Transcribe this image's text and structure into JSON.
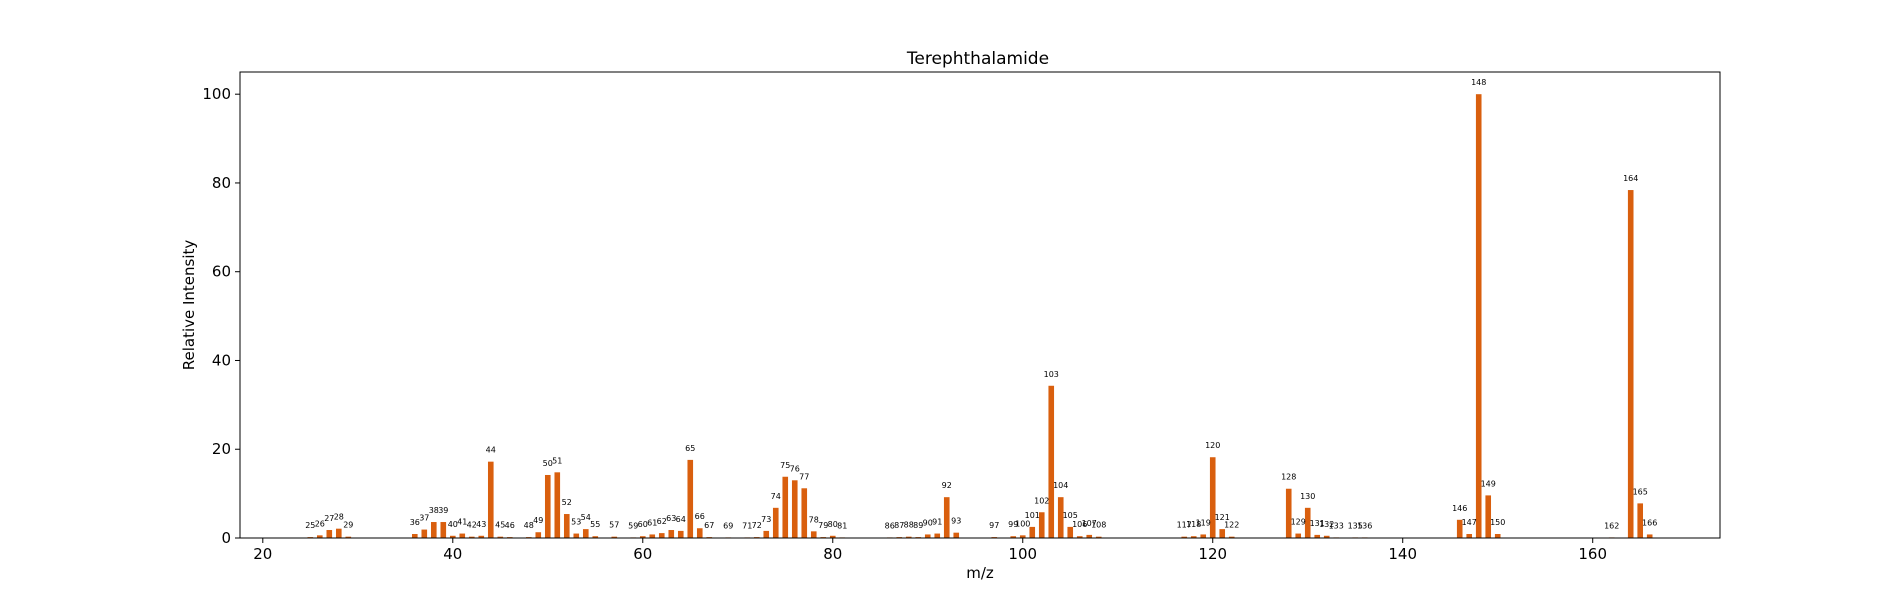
{
  "chart_data": {
    "type": "bar",
    "title": "Terephthalamide",
    "xlabel": "m/z",
    "ylabel": "Relative Intensity",
    "xlim": [
      17.6,
      173.4
    ],
    "ylim": [
      0,
      105
    ],
    "x_ticks": [
      20,
      40,
      60,
      80,
      100,
      120,
      140,
      160
    ],
    "y_ticks": [
      0,
      20,
      40,
      60,
      80,
      100
    ],
    "grid": false,
    "color": "#d95f0e",
    "points": [
      {
        "mz": 25,
        "intensity": 0.2
      },
      {
        "mz": 26,
        "intensity": 0.6
      },
      {
        "mz": 27,
        "intensity": 1.8
      },
      {
        "mz": 28,
        "intensity": 2.1
      },
      {
        "mz": 29,
        "intensity": 0.3
      },
      {
        "mz": 36,
        "intensity": 0.9
      },
      {
        "mz": 37,
        "intensity": 1.9
      },
      {
        "mz": 38,
        "intensity": 3.6
      },
      {
        "mz": 39,
        "intensity": 3.6
      },
      {
        "mz": 40,
        "intensity": 0.5
      },
      {
        "mz": 41,
        "intensity": 1.0
      },
      {
        "mz": 42,
        "intensity": 0.3
      },
      {
        "mz": 43,
        "intensity": 0.5
      },
      {
        "mz": 44,
        "intensity": 17.2
      },
      {
        "mz": 45,
        "intensity": 0.3
      },
      {
        "mz": 46,
        "intensity": 0.2
      },
      {
        "mz": 48,
        "intensity": 0.2
      },
      {
        "mz": 49,
        "intensity": 1.3
      },
      {
        "mz": 50,
        "intensity": 14.2
      },
      {
        "mz": 51,
        "intensity": 14.8
      },
      {
        "mz": 52,
        "intensity": 5.4
      },
      {
        "mz": 53,
        "intensity": 1.0
      },
      {
        "mz": 54,
        "intensity": 2.0
      },
      {
        "mz": 55,
        "intensity": 0.4
      },
      {
        "mz": 57,
        "intensity": 0.3
      },
      {
        "mz": 59,
        "intensity": 0.1
      },
      {
        "mz": 60,
        "intensity": 0.4
      },
      {
        "mz": 61,
        "intensity": 0.8
      },
      {
        "mz": 62,
        "intensity": 1.1
      },
      {
        "mz": 63,
        "intensity": 1.8
      },
      {
        "mz": 64,
        "intensity": 1.6
      },
      {
        "mz": 65,
        "intensity": 17.6
      },
      {
        "mz": 66,
        "intensity": 2.2
      },
      {
        "mz": 67,
        "intensity": 0.2
      },
      {
        "mz": 69,
        "intensity": 0.1
      },
      {
        "mz": 71,
        "intensity": 0.1
      },
      {
        "mz": 72,
        "intensity": 0.2
      },
      {
        "mz": 73,
        "intensity": 1.6
      },
      {
        "mz": 74,
        "intensity": 6.8
      },
      {
        "mz": 75,
        "intensity": 13.8
      },
      {
        "mz": 76,
        "intensity": 13.0
      },
      {
        "mz": 77,
        "intensity": 11.2
      },
      {
        "mz": 78,
        "intensity": 1.5
      },
      {
        "mz": 79,
        "intensity": 0.2
      },
      {
        "mz": 80,
        "intensity": 0.5
      },
      {
        "mz": 81,
        "intensity": 0.1
      },
      {
        "mz": 86,
        "intensity": 0.1
      },
      {
        "mz": 87,
        "intensity": 0.2
      },
      {
        "mz": 88,
        "intensity": 0.3
      },
      {
        "mz": 89,
        "intensity": 0.2
      },
      {
        "mz": 90,
        "intensity": 0.8
      },
      {
        "mz": 91,
        "intensity": 1.0
      },
      {
        "mz": 92,
        "intensity": 9.2
      },
      {
        "mz": 93,
        "intensity": 1.2
      },
      {
        "mz": 97,
        "intensity": 0.2
      },
      {
        "mz": 99,
        "intensity": 0.4
      },
      {
        "mz": 100,
        "intensity": 0.6
      },
      {
        "mz": 101,
        "intensity": 2.5
      },
      {
        "mz": 102,
        "intensity": 5.8
      },
      {
        "mz": 103,
        "intensity": 34.3
      },
      {
        "mz": 104,
        "intensity": 9.2
      },
      {
        "mz": 105,
        "intensity": 2.5
      },
      {
        "mz": 106,
        "intensity": 0.4
      },
      {
        "mz": 107,
        "intensity": 0.7
      },
      {
        "mz": 108,
        "intensity": 0.3
      },
      {
        "mz": 117,
        "intensity": 0.3
      },
      {
        "mz": 118,
        "intensity": 0.4
      },
      {
        "mz": 119,
        "intensity": 0.8
      },
      {
        "mz": 120,
        "intensity": 18.2
      },
      {
        "mz": 121,
        "intensity": 2.0
      },
      {
        "mz": 122,
        "intensity": 0.3
      },
      {
        "mz": 128,
        "intensity": 11.1
      },
      {
        "mz": 129,
        "intensity": 1.0
      },
      {
        "mz": 130,
        "intensity": 6.8
      },
      {
        "mz": 131,
        "intensity": 0.7
      },
      {
        "mz": 132,
        "intensity": 0.5
      },
      {
        "mz": 133,
        "intensity": 0.1
      },
      {
        "mz": 135,
        "intensity": 0.1
      },
      {
        "mz": 136,
        "intensity": 0.1
      },
      {
        "mz": 146,
        "intensity": 4.1
      },
      {
        "mz": 147,
        "intensity": 0.9
      },
      {
        "mz": 148,
        "intensity": 100
      },
      {
        "mz": 149,
        "intensity": 9.6
      },
      {
        "mz": 150,
        "intensity": 0.9
      },
      {
        "mz": 162,
        "intensity": 0.1
      },
      {
        "mz": 164,
        "intensity": 78.4
      },
      {
        "mz": 165,
        "intensity": 7.8
      },
      {
        "mz": 166,
        "intensity": 0.8
      }
    ]
  }
}
